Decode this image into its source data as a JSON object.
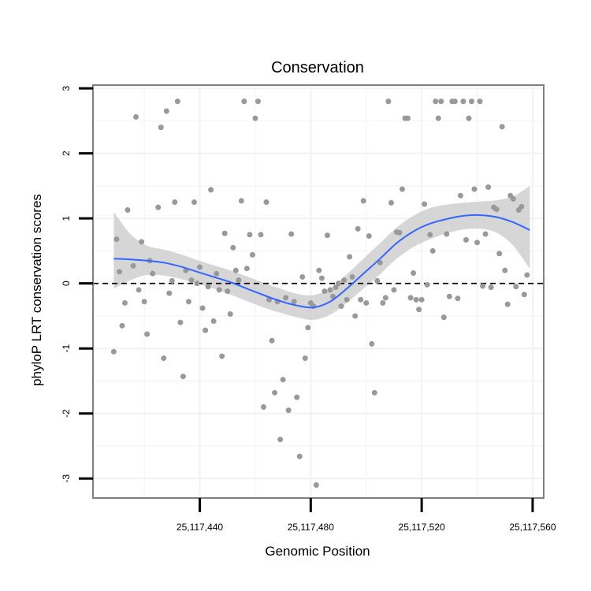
{
  "chart_data": {
    "type": "scatter",
    "title": "Conservation",
    "xlabel": "Genomic Position",
    "ylabel": "phyloP LRT conservation scores",
    "xlim": [
      25117401.5,
      25117564
    ],
    "ylim": [
      -3.3,
      3.05
    ],
    "x_ticks": [
      25117440,
      25117480,
      25117520,
      25117560
    ],
    "x_tick_labels": [
      "25,117,440",
      "25,117,480",
      "25,117,520",
      "25,117,560"
    ],
    "y_ticks": [
      -3,
      -2,
      -1,
      0,
      1,
      2,
      3
    ],
    "y_tick_labels": [
      "-3",
      "-2",
      "-1",
      "0",
      "1",
      "2",
      "3"
    ],
    "reference_line": {
      "y": 0,
      "style": "dashed",
      "color": "#000000"
    },
    "colors": {
      "points": "#999999",
      "smooth": "#3366ff",
      "ribbon": "#cccccc",
      "panel_border": "#7f7f7f",
      "grid": "#f2f2f2"
    },
    "series": [
      {
        "name": "scores",
        "kind": "points",
        "points": [
          [
            25117409,
            -1.05
          ],
          [
            25117410,
            0.68
          ],
          [
            25117411,
            0.18
          ],
          [
            25117412,
            -0.65
          ],
          [
            25117413,
            -0.3
          ],
          [
            25117414,
            1.13
          ],
          [
            25117416,
            0.27
          ],
          [
            25117417,
            2.56
          ],
          [
            25117418,
            -0.1
          ],
          [
            25117419,
            0.64
          ],
          [
            25117420,
            -0.28
          ],
          [
            25117421,
            -0.78
          ],
          [
            25117422,
            0.35
          ],
          [
            25117423,
            0.15
          ],
          [
            25117425,
            1.17
          ],
          [
            25117426,
            2.4
          ],
          [
            25117427,
            -1.15
          ],
          [
            25117428,
            2.65
          ],
          [
            25117429,
            -0.15
          ],
          [
            25117430,
            0.04
          ],
          [
            25117431,
            1.25
          ],
          [
            25117432,
            2.8
          ],
          [
            25117433,
            -0.6
          ],
          [
            25117434,
            -1.43
          ],
          [
            25117435,
            0.2
          ],
          [
            25117436,
            -0.28
          ],
          [
            25117437,
            0.05
          ],
          [
            25117438,
            1.25
          ],
          [
            25117439,
            0.0
          ],
          [
            25117440,
            0.25
          ],
          [
            25117441,
            -0.38
          ],
          [
            25117442,
            -0.72
          ],
          [
            25117443,
            -0.05
          ],
          [
            25117444,
            1.44
          ],
          [
            25117445,
            -0.58
          ],
          [
            25117446,
            0.15
          ],
          [
            25117447,
            -0.1
          ],
          [
            25117448,
            -1.12
          ],
          [
            25117449,
            0.77
          ],
          [
            25117450,
            -0.12
          ],
          [
            25117451,
            -0.47
          ],
          [
            25117452,
            0.55
          ],
          [
            25117453,
            0.2
          ],
          [
            25117454,
            0.05
          ],
          [
            25117455,
            1.27
          ],
          [
            25117456,
            2.8
          ],
          [
            25117457,
            0.23
          ],
          [
            25117458,
            0.75
          ],
          [
            25117459,
            0.44
          ],
          [
            25117460,
            2.54
          ],
          [
            25117461,
            2.8
          ],
          [
            25117462,
            0.75
          ],
          [
            25117463,
            -1.9
          ],
          [
            25117464,
            1.25
          ],
          [
            25117465,
            -0.25
          ],
          [
            25117466,
            -0.88
          ],
          [
            25117467,
            -1.68
          ],
          [
            25117468,
            -0.28
          ],
          [
            25117469,
            -2.4
          ],
          [
            25117470,
            -1.48
          ],
          [
            25117471,
            -0.22
          ],
          [
            25117472,
            -1.95
          ],
          [
            25117473,
            0.76
          ],
          [
            25117474,
            -0.28
          ],
          [
            25117475,
            -1.75
          ],
          [
            25117476,
            -2.66
          ],
          [
            25117477,
            0.1
          ],
          [
            25117478,
            -1.15
          ],
          [
            25117479,
            -0.68
          ],
          [
            25117480,
            -0.3
          ],
          [
            25117481,
            -0.35
          ],
          [
            25117482,
            -3.1
          ],
          [
            25117483,
            0.2
          ],
          [
            25117484,
            0.08
          ],
          [
            25117485,
            -0.12
          ],
          [
            25117486,
            0.74
          ],
          [
            25117487,
            -0.1
          ],
          [
            25117488,
            -0.2
          ],
          [
            25117489,
            -0.06
          ],
          [
            25117490,
            0.0
          ],
          [
            25117491,
            -0.35
          ],
          [
            25117492,
            0.05
          ],
          [
            25117493,
            -0.25
          ],
          [
            25117494,
            0.41
          ],
          [
            25117495,
            0.1
          ],
          [
            25117496,
            -0.5
          ],
          [
            25117497,
            0.84
          ],
          [
            25117498,
            -0.25
          ],
          [
            25117499,
            1.27
          ],
          [
            25117500,
            -0.3
          ],
          [
            25117501,
            0.73
          ],
          [
            25117502,
            -0.93
          ],
          [
            25117503,
            -1.68
          ],
          [
            25117504,
            0.04
          ],
          [
            25117505,
            0.32
          ],
          [
            25117506,
            -0.3
          ],
          [
            25117507,
            -0.22
          ],
          [
            25117508,
            2.8
          ],
          [
            25117509,
            1.24
          ],
          [
            25117510,
            -0.1
          ],
          [
            25117511,
            0.79
          ],
          [
            25117512,
            0.78
          ],
          [
            25117513,
            1.45
          ],
          [
            25117514,
            2.54
          ],
          [
            25117515,
            2.54
          ],
          [
            25117516,
            -0.22
          ],
          [
            25117517,
            0.16
          ],
          [
            25117518,
            -0.25
          ],
          [
            25117519,
            -0.4
          ],
          [
            25117520,
            -0.25
          ],
          [
            25117521,
            1.22
          ],
          [
            25117522,
            -0.02
          ],
          [
            25117523,
            0.75
          ],
          [
            25117524,
            0.5
          ],
          [
            25117525,
            2.8
          ],
          [
            25117526,
            2.54
          ],
          [
            25117527,
            2.8
          ],
          [
            25117528,
            -0.52
          ],
          [
            25117529,
            0.76
          ],
          [
            25117530,
            -0.2
          ],
          [
            25117531,
            2.8
          ],
          [
            25117532,
            2.8
          ],
          [
            25117533,
            -0.23
          ],
          [
            25117534,
            1.35
          ],
          [
            25117535,
            2.8
          ],
          [
            25117536,
            0.67
          ],
          [
            25117537,
            2.54
          ],
          [
            25117538,
            2.8
          ],
          [
            25117539,
            1.45
          ],
          [
            25117540,
            0.63
          ],
          [
            25117541,
            2.8
          ],
          [
            25117542,
            -0.04
          ],
          [
            25117543,
            0.76
          ],
          [
            25117544,
            1.48
          ],
          [
            25117545,
            -0.06
          ],
          [
            25117546,
            1.17
          ],
          [
            25117547,
            1.14
          ],
          [
            25117548,
            0.46
          ],
          [
            25117549,
            2.41
          ],
          [
            25117550,
            0.2
          ],
          [
            25117551,
            -0.32
          ],
          [
            25117552,
            1.35
          ],
          [
            25117553,
            1.3
          ],
          [
            25117554,
            -0.05
          ],
          [
            25117555,
            1.13
          ],
          [
            25117556,
            1.18
          ],
          [
            25117557,
            -0.17
          ],
          [
            25117558,
            0.13
          ]
        ]
      },
      {
        "name": "loess smooth",
        "kind": "line",
        "x": [
          25117409,
          25117415,
          25117421,
          25117427,
          25117433,
          25117439,
          25117445,
          25117451,
          25117457,
          25117463,
          25117469,
          25117475,
          25117481,
          25117487,
          25117493,
          25117499,
          25117505,
          25117511,
          25117517,
          25117523,
          25117529,
          25117535,
          25117541,
          25117547,
          25117553,
          25117559
        ],
        "y": [
          0.38,
          0.37,
          0.35,
          0.32,
          0.26,
          0.18,
          0.1,
          0.02,
          -0.08,
          -0.18,
          -0.27,
          -0.34,
          -0.37,
          -0.28,
          -0.08,
          0.15,
          0.38,
          0.62,
          0.8,
          0.92,
          0.99,
          1.04,
          1.05,
          1.02,
          0.94,
          0.82
        ]
      },
      {
        "name": "confidence band",
        "kind": "ribbon",
        "x": [
          25117409,
          25117415,
          25117421,
          25117427,
          25117433,
          25117439,
          25117445,
          25117451,
          25117457,
          25117463,
          25117469,
          25117475,
          25117481,
          25117487,
          25117493,
          25117499,
          25117505,
          25117511,
          25117517,
          25117523,
          25117529,
          25117535,
          25117541,
          25117547,
          25117553,
          25117559
        ],
        "lower": [
          -0.08,
          0.05,
          0.13,
          0.12,
          0.07,
          0.0,
          -0.08,
          -0.17,
          -0.27,
          -0.37,
          -0.45,
          -0.52,
          -0.56,
          -0.48,
          -0.3,
          -0.08,
          0.14,
          0.38,
          0.56,
          0.68,
          0.77,
          0.83,
          0.84,
          0.78,
          0.58,
          0.22
        ],
        "upper": [
          1.1,
          0.76,
          0.58,
          0.52,
          0.45,
          0.36,
          0.28,
          0.2,
          0.11,
          0.01,
          -0.08,
          -0.16,
          -0.18,
          -0.08,
          0.14,
          0.38,
          0.62,
          0.86,
          1.04,
          1.16,
          1.21,
          1.24,
          1.26,
          1.28,
          1.34,
          1.5
        ]
      }
    ]
  }
}
